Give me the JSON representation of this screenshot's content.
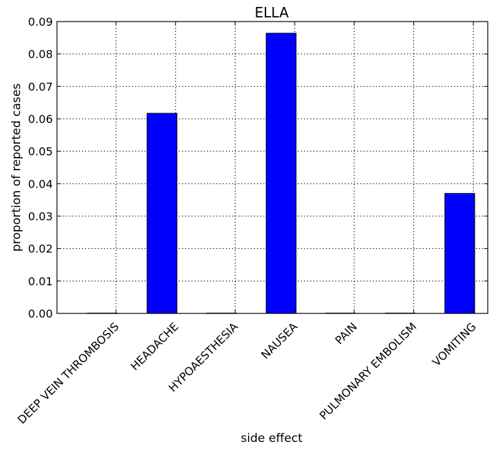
{
  "chart_data": {
    "type": "bar",
    "title": "ELLA",
    "xlabel": "side effect",
    "ylabel": "proportion of reported cases",
    "categories": [
      "DEEP VEIN THROMBOSIS",
      "HEADACHE",
      "HYPOAESTHESIA",
      "NAUSEA",
      "PAIN",
      "PULMONARY EMBOLISM",
      "VOMITING"
    ],
    "values": [
      0.0,
      0.0617,
      0.0,
      0.0864,
      0.0,
      0.0,
      0.037
    ],
    "ylim": [
      0,
      0.09
    ],
    "yticks": [
      "0.00",
      "0.01",
      "0.02",
      "0.03",
      "0.04",
      "0.05",
      "0.06",
      "0.07",
      "0.08",
      "0.09"
    ],
    "grid": true,
    "bar_color": "#0000ff"
  }
}
